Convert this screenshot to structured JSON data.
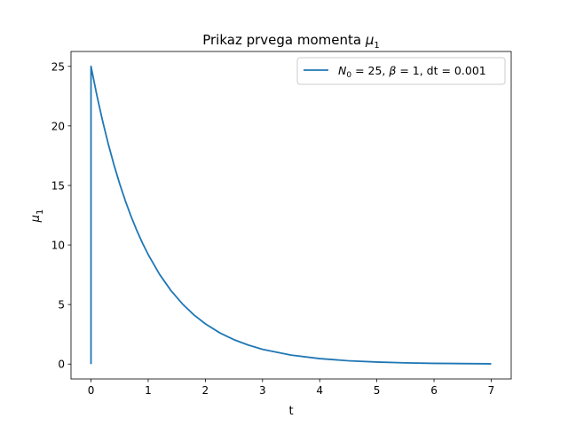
{
  "chart_data": {
    "type": "line",
    "title_text": "Prikaz prvega momenta ",
    "title_symbol": "μ",
    "title_sub": "1",
    "xlabel": "t",
    "ylabel_symbol": "μ",
    "ylabel_sub": "1",
    "xlim": [
      -0.35,
      7.35
    ],
    "ylim": [
      -1.25,
      26.25
    ],
    "xticks": [
      0,
      1,
      2,
      3,
      4,
      5,
      6,
      7
    ],
    "yticks": [
      0,
      5,
      10,
      15,
      20,
      25
    ],
    "grid": false,
    "legend_position": "top-right",
    "legend": {
      "n_symbol": "N",
      "n_sub": "0",
      "n_value": " = 25, ",
      "beta_symbol": "β",
      "beta_value": " = 1, dt = 0.001"
    },
    "series": [
      {
        "color": "#1f77b4",
        "x": [
          0,
          0,
          0.1,
          0.2,
          0.3,
          0.4,
          0.5,
          0.6,
          0.7,
          0.8,
          0.9,
          1.0,
          1.2,
          1.4,
          1.6,
          1.8,
          2.0,
          2.25,
          2.5,
          2.75,
          3.0,
          3.5,
          4.0,
          4.5,
          5.0,
          5.5,
          6.0,
          6.5,
          7.0
        ],
        "y": [
          0,
          25,
          22.62,
          20.47,
          18.52,
          16.76,
          15.16,
          13.72,
          12.41,
          11.23,
          10.16,
          9.2,
          7.53,
          6.16,
          5.05,
          4.13,
          3.38,
          2.63,
          2.05,
          1.6,
          1.24,
          0.75,
          0.46,
          0.28,
          0.17,
          0.1,
          0.06,
          0.04,
          0.02
        ]
      }
    ]
  }
}
